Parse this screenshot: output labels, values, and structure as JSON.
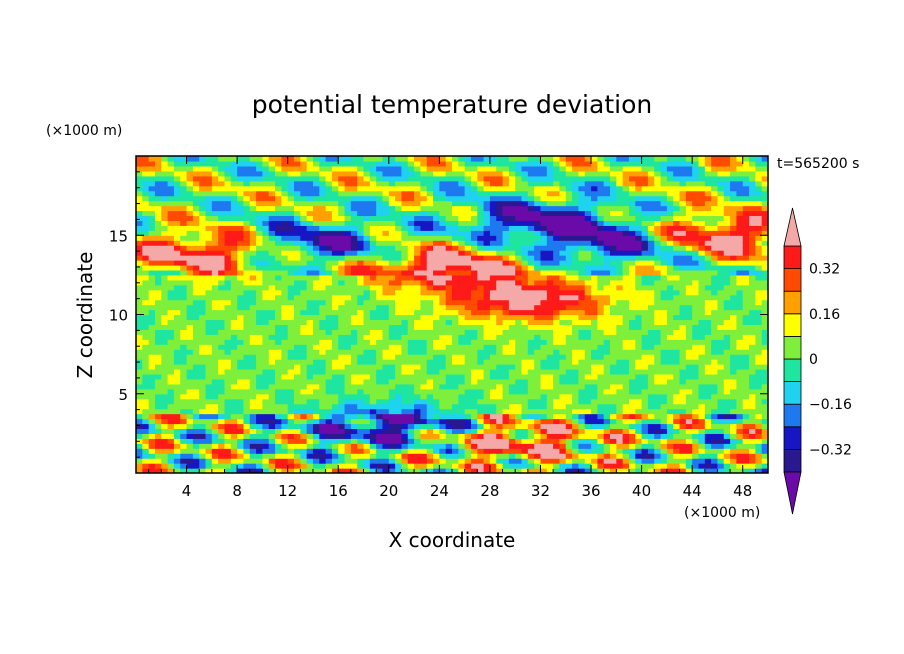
{
  "chart_data": {
    "type": "heatmap",
    "title": "potential temperature deviation",
    "xlabel": "X coordinate",
    "ylabel": "Z coordinate",
    "x_unit": "(×1000 m)",
    "y_unit": "(×1000 m)",
    "time_label": "t=565200 s",
    "xlim": [
      0,
      50
    ],
    "ylim": [
      0,
      20
    ],
    "x_ticks": [
      4,
      8,
      12,
      16,
      20,
      24,
      28,
      32,
      36,
      40,
      44,
      48
    ],
    "x_tick_labels": [
      "4",
      "8",
      "12",
      "16",
      "20",
      "24",
      "28",
      "32",
      "36",
      "40",
      "44",
      "48"
    ],
    "y_ticks": [
      5,
      10,
      15
    ],
    "y_tick_labels": [
      "5",
      "10",
      "15"
    ],
    "colorbar": {
      "levels": [
        -0.4,
        -0.32,
        -0.24,
        -0.16,
        -0.08,
        0,
        0.08,
        0.16,
        0.24,
        0.32,
        0.4
      ],
      "tick_values": [
        0.32,
        0.16,
        0,
        -0.16,
        -0.32
      ],
      "tick_labels": [
        "0.32",
        "0.16",
        "0",
        "−0.16",
        "−0.32"
      ],
      "colors": [
        "#6a0aa8",
        "#2a1890",
        "#1616c4",
        "#1e78f0",
        "#1ed2f0",
        "#1ee6a0",
        "#7ef03c",
        "#ffff00",
        "#ffa000",
        "#ff4a00",
        "#ff1a1a",
        "#f4a8a8"
      ],
      "extend": "both"
    },
    "features": [
      {
        "x": 14,
        "y": 14.5,
        "value": -0.4
      },
      {
        "x": 6,
        "y": 14.0,
        "value": 0.45
      },
      {
        "x": 24,
        "y": 13.0,
        "value": 0.45
      },
      {
        "x": 31,
        "y": 11.0,
        "value": 0.45
      },
      {
        "x": 46,
        "y": 15.0,
        "value": 0.45
      },
      {
        "x": 38,
        "y": 14.5,
        "value": -0.4
      },
      {
        "x": 32,
        "y": 16.0,
        "value": -0.4
      },
      {
        "x": 20,
        "y": 3.0,
        "value": -0.4
      },
      {
        "x": 30,
        "y": 2.0,
        "value": 0.35
      }
    ]
  }
}
